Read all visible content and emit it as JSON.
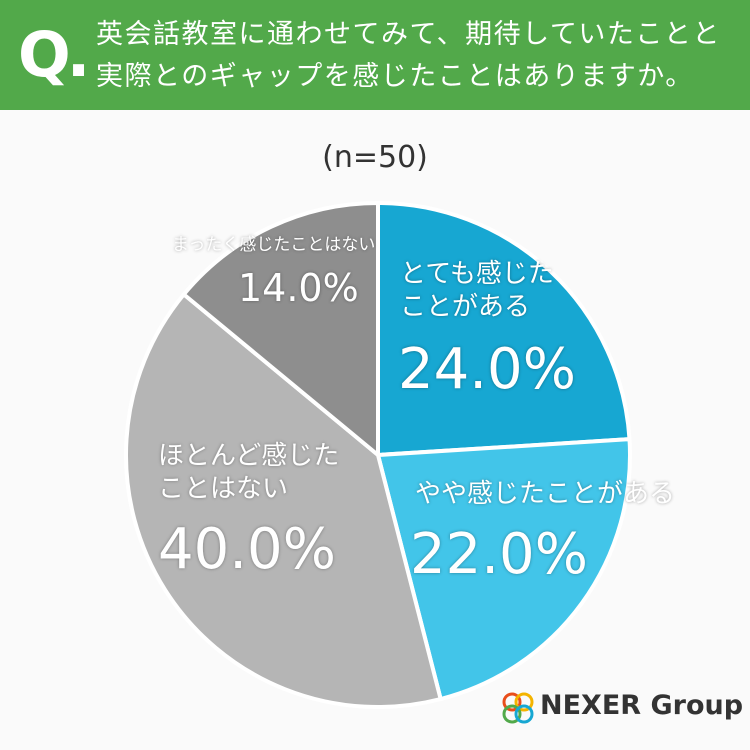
{
  "chart_data": {
    "type": "pie",
    "title": "英会話教室に通わせてみて、期待していたことと実際とのギャップを感じたことはありますか。",
    "subtitle": "(n=50)",
    "categories": [
      "とても感じたことがある",
      "やや感じたことがある",
      "ほとんど感じたことはない",
      "まったく感じたことはない"
    ],
    "values": [
      24.0,
      22.0,
      40.0,
      14.0
    ],
    "value_labels": [
      "24.0%",
      "22.0%",
      "40.0%",
      "14.0%"
    ],
    "colors": [
      "#17a7d2",
      "#42c5e9",
      "#b5b5b5",
      "#8e8e8e"
    ]
  },
  "badge": "Q.",
  "logo": "NEXER Group"
}
